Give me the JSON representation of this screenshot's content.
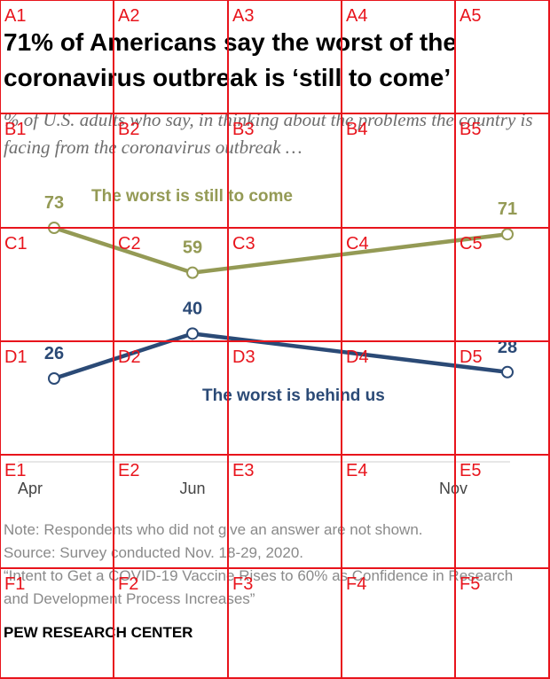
{
  "title": "71% of Americans say the worst of the coronavirus outbreak is ‘still to come’",
  "subtitle": "% of U.S. adults who say, in thinking about the problems the country is facing from the coronavirus outbreak …",
  "footer": {
    "note": "Note: Respondents who did not give an answer are not shown.",
    "source": "Source: Survey conducted Nov. 18-29, 2020.",
    "report": "“Intent to Get a COVID-19 Vaccine Rises to 60% as Confidence in Research and Development Process Increases”",
    "org": "PEW RESEARCH CENTER"
  },
  "chart_data": {
    "type": "line",
    "x": [
      "Apr",
      "Jun",
      "Nov"
    ],
    "x_tick_labels": [
      "Apr",
      "Jun",
      "Nov"
    ],
    "series": [
      {
        "name": "The worst is still to come",
        "color": "#949a55",
        "values": [
          73,
          59,
          71
        ]
      },
      {
        "name": "The worst is behind us",
        "color": "#2b4a76",
        "values": [
          26,
          40,
          28
        ]
      }
    ],
    "ylim": [
      0,
      100
    ],
    "title": "",
    "xlabel": "",
    "ylabel": "",
    "grid": false,
    "legend": "direct labels on lines"
  },
  "overlay": {
    "color": "#e8141c",
    "labels": [
      "A1",
      "A2",
      "A3",
      "A4",
      "A5",
      "B1",
      "B2",
      "B3",
      "B4",
      "B5",
      "C1",
      "C2",
      "C3",
      "C4",
      "C5",
      "D1",
      "D2",
      "D3",
      "D4",
      "D5",
      "E1",
      "E2",
      "E3",
      "E4",
      "E5",
      "F1",
      "F2",
      "F3",
      "F4",
      "F5"
    ]
  }
}
